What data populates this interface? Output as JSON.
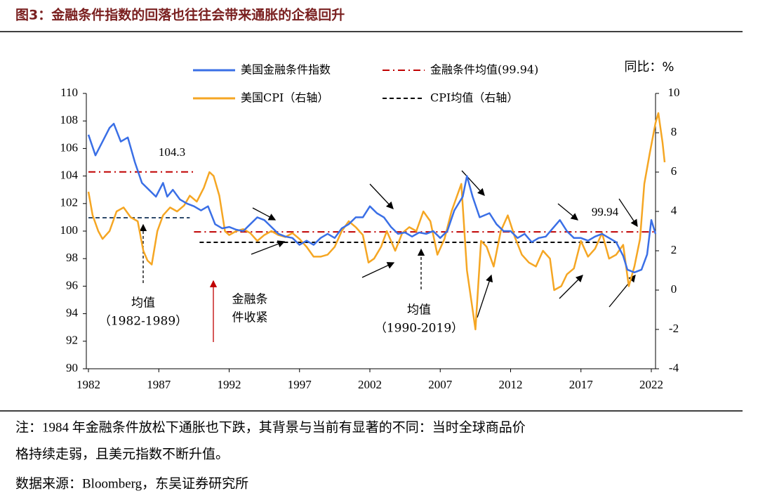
{
  "chart_data": {
    "type": "line",
    "title": "图3：金融条件指数的回落也往往会带来通胀的企稳回升",
    "unit_label": "同比：%",
    "xlim": [
      1981.85,
      2022.3
    ],
    "xticks": [
      1982,
      1987,
      1992,
      1997,
      2002,
      2007,
      2012,
      2017,
      2022
    ],
    "ylim": [
      90,
      110
    ],
    "yticks": [
      90,
      92,
      94,
      96,
      98,
      100,
      102,
      104,
      106,
      108,
      110
    ],
    "y2lim": [
      -4,
      10
    ],
    "y2ticks": [
      -4,
      -2,
      0,
      2,
      4,
      6,
      8,
      10
    ],
    "series": [
      {
        "name": "美国金融条件指数",
        "color": "#3a6fe6",
        "axis": "y",
        "x": [
          1982.0,
          1982.5,
          1983.0,
          1983.5,
          1983.8,
          1984.3,
          1984.8,
          1985.3,
          1985.8,
          1986.3,
          1986.8,
          1987.3,
          1987.6,
          1988.0,
          1988.5,
          1989.0,
          1989.5,
          1990.0,
          1990.5,
          1991.0,
          1991.5,
          1992.0,
          1992.5,
          1993.0,
          1993.5,
          1994.0,
          1994.5,
          1995.0,
          1995.5,
          1996.0,
          1996.5,
          1997.0,
          1997.5,
          1998.0,
          1998.5,
          1999.0,
          1999.5,
          2000.0,
          2000.5,
          2001.0,
          2001.5,
          2002.0,
          2002.5,
          2003.0,
          2003.5,
          2004.0,
          2004.5,
          2005.0,
          2005.5,
          2006.0,
          2006.5,
          2007.0,
          2007.5,
          2008.0,
          2008.6,
          2008.9,
          2009.3,
          2009.8,
          2010.5,
          2011.0,
          2011.5,
          2012.0,
          2012.5,
          2013.0,
          2013.5,
          2014.0,
          2014.5,
          2015.0,
          2015.5,
          2016.0,
          2016.5,
          2017.0,
          2017.5,
          2018.0,
          2018.5,
          2019.0,
          2019.5,
          2020.0,
          2020.3,
          2020.8,
          2021.3,
          2021.7,
          2022.0,
          2022.3
        ],
        "values": [
          107,
          105.5,
          106.5,
          107.5,
          107.8,
          106.5,
          106.8,
          105,
          103.5,
          103,
          102.5,
          103.5,
          102.5,
          103,
          102.3,
          102,
          101.8,
          101.5,
          101.8,
          100.5,
          100.2,
          100.3,
          100.1,
          100,
          100.5,
          101,
          100.8,
          100.3,
          99.8,
          99.6,
          99.5,
          99,
          99.3,
          99,
          99.5,
          99.8,
          99.5,
          100.2,
          100.5,
          101,
          101,
          101.8,
          101.3,
          101,
          100.3,
          99.8,
          99.9,
          99.6,
          99.9,
          99.8,
          100,
          99.5,
          100,
          101.5,
          102.5,
          104,
          102.5,
          101,
          101.3,
          100.5,
          100,
          100,
          99.5,
          99.8,
          99.2,
          99.5,
          99.6,
          100.2,
          100.8,
          100,
          99.5,
          99.5,
          99.3,
          99.6,
          99.8,
          99.5,
          99.2,
          98.2,
          97.2,
          97,
          97.2,
          98.3,
          100.8,
          99.8
        ]
      },
      {
        "name": "美国CPI（右轴）",
        "color": "#f5a623",
        "axis": "y2",
        "x": [
          1982.0,
          1982.3,
          1982.7,
          1983.0,
          1983.5,
          1984.0,
          1984.5,
          1985.0,
          1985.5,
          1985.9,
          1986.2,
          1986.5,
          1986.9,
          1987.3,
          1987.8,
          1988.3,
          1988.8,
          1989.2,
          1989.7,
          1990.2,
          1990.6,
          1990.9,
          1991.3,
          1991.7,
          1992.0,
          1992.5,
          1993.0,
          1993.5,
          1994.0,
          1994.5,
          1995.0,
          1995.5,
          1996.0,
          1996.5,
          1997.0,
          1997.5,
          1998.0,
          1998.5,
          1999.0,
          1999.5,
          2000.0,
          2000.5,
          2001.0,
          2001.5,
          2001.9,
          2002.3,
          2002.8,
          2003.2,
          2003.8,
          2004.3,
          2004.8,
          2005.3,
          2005.8,
          2006.3,
          2006.8,
          2007.3,
          2007.8,
          2008.5,
          2008.9,
          2009.2,
          2009.5,
          2009.9,
          2010.3,
          2010.8,
          2011.3,
          2011.8,
          2012.3,
          2012.8,
          2013.3,
          2013.8,
          2014.3,
          2014.8,
          2015.1,
          2015.6,
          2016.0,
          2016.5,
          2017.0,
          2017.5,
          2018.0,
          2018.5,
          2019.0,
          2019.5,
          2020.0,
          2020.4,
          2020.8,
          2021.2,
          2021.5,
          2021.9,
          2022.3,
          2022.5,
          2022.8,
          2022.95
        ],
        "values": [
          5,
          3.8,
          3,
          2.6,
          3,
          4,
          4.2,
          3.7,
          3.5,
          2,
          1.5,
          1.3,
          3,
          3.8,
          4.2,
          4,
          4.3,
          4.8,
          4.5,
          5.2,
          6,
          5.8,
          4.8,
          3,
          2.8,
          3,
          3.1,
          2.9,
          2.5,
          2.8,
          3,
          2.8,
          2.7,
          2.9,
          2.6,
          2.2,
          1.7,
          1.7,
          1.8,
          2.2,
          3,
          3.5,
          3.2,
          2.8,
          1.4,
          1.6,
          2.2,
          3,
          2,
          2.9,
          3.2,
          3,
          4,
          3.5,
          1.8,
          2.6,
          4,
          5.4,
          1,
          -0.5,
          -2,
          2.5,
          2.2,
          1.2,
          3,
          3.8,
          2.7,
          1.8,
          1.4,
          1.2,
          2,
          1.6,
          0,
          0.2,
          0.8,
          1.1,
          2.5,
          1.7,
          2.1,
          2.9,
          1.6,
          1.8,
          2.3,
          0.2,
          1.2,
          2.6,
          5.4,
          7,
          8.5,
          9,
          7.5,
          6.5
        ]
      }
    ],
    "reference_lines": [
      {
        "name": "金融条件均值(99.94)",
        "value": 99.94,
        "axis": "y",
        "x": [
          1989.5,
          2022.3
        ],
        "color": "#c00000",
        "style": "dashdot"
      },
      {
        "name": "CPI均值（右轴）",
        "value": 2.43,
        "axis": "y2",
        "x": [
          1989.9,
          2019.6
        ],
        "color": "#000000",
        "style": "dashed"
      },
      {
        "value": 104.3,
        "axis": "y",
        "x": [
          1982,
          1989.5
        ],
        "color": "#c00000",
        "style": "dashdot"
      },
      {
        "value": 100.97,
        "axis": "y",
        "x": [
          1982,
          1989.2
        ],
        "color": "#2f4a6b",
        "style": "dashed"
      }
    ],
    "annotations": [
      {
        "lines": [
          "均值",
          "（1982-1989）"
        ],
        "color": "#000000"
      },
      {
        "lines": [
          "均值",
          "（1990-2019）"
        ],
        "color": "#000000"
      },
      {
        "lines": [
          "金融条",
          "件收紧"
        ],
        "color": "#c00000"
      }
    ]
  },
  "note": [
    "注：1984 年金融条件放松下通胀也下跌，其背景与当前有显著的不同：当时全球商品价",
    "格持续走弱，且美元指数不断升值。"
  ],
  "source": "数据来源：Bloomberg，东吴证券研究所"
}
